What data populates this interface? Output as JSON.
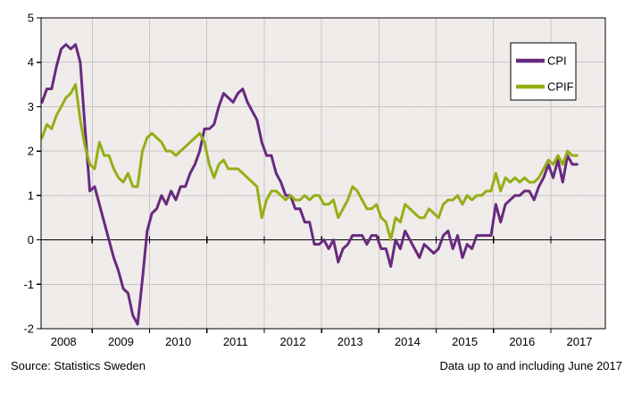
{
  "footer": {
    "source": "Source: Statistics Sweden",
    "note": "Data up to and including June 2017"
  },
  "chart_data": {
    "type": "line",
    "title": "",
    "xlabel": "",
    "ylabel": "",
    "frequency": "monthly",
    "x_start": "2008-01",
    "x_end": "2017-06",
    "x_tick_labels": [
      "2008",
      "2009",
      "2010",
      "2011",
      "2012",
      "2013",
      "2014",
      "2015",
      "2016",
      "2017"
    ],
    "y_ticks": [
      5,
      4,
      3,
      2,
      1,
      0,
      -1,
      -2
    ],
    "ylim": [
      -2,
      5
    ],
    "grid": true,
    "legend_position": "top-right",
    "colors": {
      "cpi": "#682A7E",
      "cpif": "#96AE16",
      "plot_background": "#f0eded",
      "gridline": "#c8c5c5",
      "axis": "#000000",
      "legend_background": "#ffffff"
    },
    "series": [
      {
        "name": "CPI",
        "color": "#682A7E",
        "values": [
          3.2,
          3.1,
          3.4,
          3.4,
          3.9,
          4.3,
          4.4,
          4.3,
          4.4,
          4.0,
          2.5,
          1.1,
          1.2,
          0.8,
          0.4,
          0.0,
          -0.4,
          -0.7,
          -1.1,
          -1.2,
          -1.7,
          -1.9,
          -0.9,
          0.2,
          0.6,
          0.7,
          1.0,
          0.8,
          1.1,
          0.9,
          1.2,
          1.2,
          1.5,
          1.7,
          2.0,
          2.5,
          2.5,
          2.6,
          3.0,
          3.3,
          3.2,
          3.1,
          3.3,
          3.4,
          3.1,
          2.9,
          2.7,
          2.2,
          1.9,
          1.9,
          1.5,
          1.3,
          1.0,
          1.0,
          0.7,
          0.7,
          0.4,
          0.4,
          -0.1,
          -0.1,
          0.0,
          -0.2,
          0.0,
          -0.5,
          -0.2,
          -0.1,
          0.1,
          0.1,
          0.1,
          -0.1,
          0.1,
          0.1,
          -0.2,
          -0.2,
          -0.6,
          0.0,
          -0.2,
          0.2,
          0.0,
          -0.2,
          -0.4,
          -0.1,
          -0.2,
          -0.3,
          -0.2,
          0.1,
          0.2,
          -0.2,
          0.1,
          -0.4,
          -0.1,
          -0.2,
          0.1,
          0.1,
          0.1,
          0.1,
          0.8,
          0.4,
          0.8,
          0.9,
          1.0,
          1.0,
          1.1,
          1.1,
          0.9,
          1.2,
          1.4,
          1.7,
          1.4,
          1.8,
          1.3,
          1.9,
          1.7,
          1.7
        ]
      },
      {
        "name": "CPIF",
        "color": "#96AE16",
        "values": [
          2.3,
          2.3,
          2.6,
          2.5,
          2.8,
          3.0,
          3.2,
          3.3,
          3.5,
          2.7,
          2.1,
          1.7,
          1.6,
          2.2,
          1.9,
          1.9,
          1.6,
          1.4,
          1.3,
          1.5,
          1.2,
          1.2,
          2.0,
          2.3,
          2.4,
          2.3,
          2.2,
          2.0,
          2.0,
          1.9,
          2.0,
          2.1,
          2.2,
          2.3,
          2.4,
          2.2,
          1.7,
          1.4,
          1.7,
          1.8,
          1.6,
          1.6,
          1.6,
          1.5,
          1.4,
          1.3,
          1.2,
          0.5,
          0.9,
          1.1,
          1.1,
          1.0,
          0.9,
          1.0,
          0.9,
          0.9,
          1.0,
          0.9,
          1.0,
          1.0,
          0.8,
          0.8,
          0.9,
          0.5,
          0.7,
          0.9,
          1.2,
          1.1,
          0.9,
          0.7,
          0.7,
          0.8,
          0.5,
          0.4,
          0.0,
          0.5,
          0.4,
          0.8,
          0.7,
          0.6,
          0.5,
          0.5,
          0.7,
          0.6,
          0.5,
          0.8,
          0.9,
          0.9,
          1.0,
          0.8,
          1.0,
          0.9,
          1.0,
          1.0,
          1.1,
          1.1,
          1.5,
          1.1,
          1.4,
          1.3,
          1.4,
          1.3,
          1.4,
          1.3,
          1.3,
          1.4,
          1.6,
          1.8,
          1.7,
          1.9,
          1.7,
          2.0,
          1.9,
          1.9
        ]
      }
    ]
  }
}
